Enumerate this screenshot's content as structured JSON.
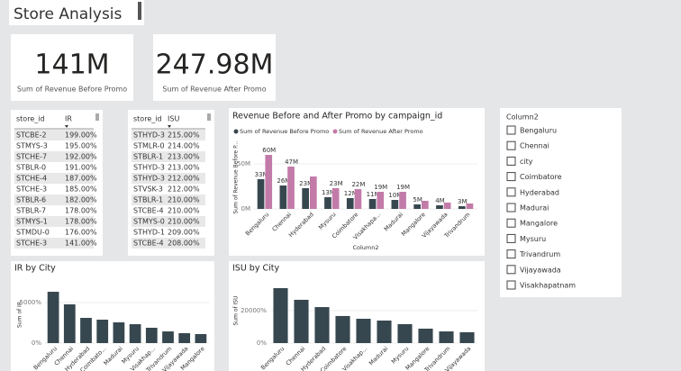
{
  "title": "Store Analysis",
  "cards": [
    {
      "value": "141M",
      "label": "Sum of Revenue Before Promo"
    },
    {
      "value": "247.98M",
      "label": "Sum of Revenue After Promo"
    }
  ],
  "tables": [
    {
      "columns": [
        "store_id",
        "IR"
      ],
      "rows": [
        [
          "STCBE-2",
          "199.00%"
        ],
        [
          "STMYS-3",
          "195.00%"
        ],
        [
          "STCHE-7",
          "192.00%"
        ],
        [
          "STBLR-0",
          "191.00%"
        ],
        [
          "STCHE-4",
          "187.00%"
        ],
        [
          "STCHE-3",
          "185.00%"
        ],
        [
          "STBLR-6",
          "182.00%"
        ],
        [
          "STBLR-7",
          "178.00%"
        ],
        [
          "STMYS-1",
          "178.00%"
        ],
        [
          "STMDU-0",
          "176.00%"
        ],
        [
          "STCHE-3",
          "141.00%"
        ]
      ]
    },
    {
      "columns": [
        "store_id",
        "ISU"
      ],
      "rows": [
        [
          "STHYD-3",
          "215.00%"
        ],
        [
          "STMLR-0",
          "214.00%"
        ],
        [
          "STBLR-1",
          "213.00%"
        ],
        [
          "STHYD-3",
          "213.00%"
        ],
        [
          "STHYD-3",
          "212.00%"
        ],
        [
          "STVSK-3",
          "212.00%"
        ],
        [
          "STBLR-1",
          "210.00%"
        ],
        [
          "STCBE-4",
          "210.00%"
        ],
        [
          "STMYS-0",
          "210.00%"
        ],
        [
          "STHYD-1",
          "209.00%"
        ],
        [
          "STCBE-4",
          "208.00%"
        ]
      ]
    }
  ],
  "slicer": {
    "title": "Column2",
    "items": [
      "Bengaluru",
      "Chennai",
      "city",
      "Coimbatore",
      "Hyderabad",
      "Madurai",
      "Mangalore",
      "Mysuru",
      "Trivandrum",
      "Vijayawada",
      "Visakhapatnam"
    ]
  },
  "chart_data": [
    {
      "type": "grouped-bar",
      "title": "Revenue Before and After Promo by campaign_id",
      "y_label": "Sum of Revenue Before P...",
      "x_label": "Column2",
      "categories": [
        "Bengaluru",
        "Chennai",
        "Hyderabad",
        "Mysuru",
        "Coimbatore",
        "Visakhapa...",
        "Madurai",
        "Mangalore",
        "Vijayawada",
        "Trivandrum"
      ],
      "series": [
        {
          "name": "Sum of Revenue Before Promo",
          "color": "#37474f",
          "values": [
            33,
            26,
            23,
            13,
            12,
            11,
            10,
            5,
            4,
            3
          ],
          "value_labels": [
            "33M",
            "26M",
            "23M",
            "13M",
            "12M",
            "11M",
            "10M",
            "5M",
            "4M",
            "3M"
          ]
        },
        {
          "name": "Sum of Revenue After Promo",
          "color": "#c27ba9",
          "values": [
            60,
            47,
            36,
            23,
            22,
            19,
            19,
            9,
            7,
            6
          ],
          "value_labels": [
            "60M",
            "47M",
            null,
            "23M",
            "22M",
            "19M",
            "19M",
            null,
            null,
            null
          ]
        }
      ],
      "ylim": [
        0,
        70
      ],
      "yticks": [
        {
          "value": 0,
          "label": "0M"
        },
        {
          "value": 50,
          "label": "50M"
        }
      ],
      "legend": "top-left"
    },
    {
      "type": "bar",
      "title": "IR by City",
      "y_label": "Sum of IR",
      "color": "#37474f",
      "categories": [
        "Bengaluru",
        "Chennai",
        "Hyderabad",
        "Coimbato...",
        "Madurai",
        "Mysuru",
        "Visakhap...",
        "Trivandrum",
        "Vijayawada",
        "Mangalore"
      ],
      "values": [
        6330,
        4780,
        3110,
        2890,
        2560,
        2330,
        1890,
        1440,
        1220,
        1110
      ],
      "ylim": [
        0,
        7000
      ],
      "yticks": [
        {
          "value": 0,
          "label": "0%"
        },
        {
          "value": 5000,
          "label": "5000%"
        }
      ]
    },
    {
      "type": "bar",
      "title": "ISU by City",
      "y_label": "Sum of ISU",
      "color": "#37474f",
      "categories": [
        "Bengaluru",
        "Chennai",
        "Hyderabad",
        "Coimbatore",
        "Visakhap...",
        "Madurai",
        "Mysuru",
        "Mangalore",
        "Trivandrum",
        "Vijayawada"
      ],
      "values": [
        33900,
        26700,
        22200,
        16700,
        15000,
        13900,
        11700,
        8900,
        7200,
        6700
      ],
      "ylim": [
        0,
        40000
      ],
      "yticks": [
        {
          "value": 0,
          "label": "0%"
        },
        {
          "value": 20000,
          "label": "20000%"
        }
      ]
    }
  ]
}
